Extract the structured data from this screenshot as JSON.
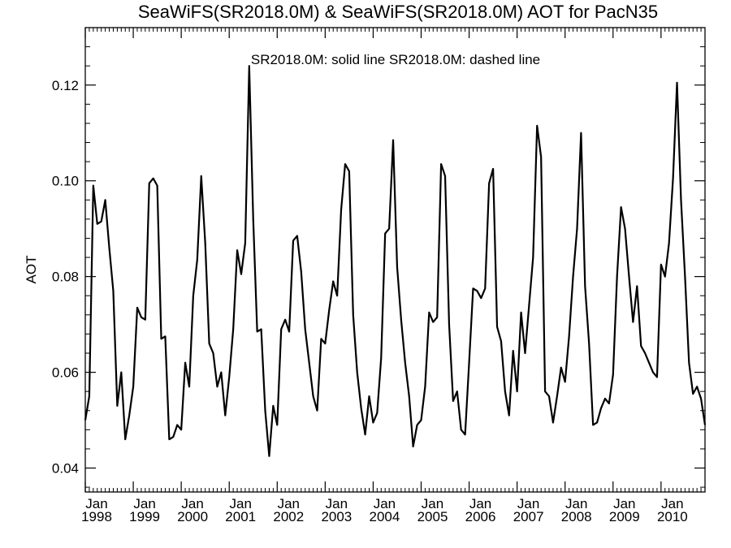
{
  "chart_data": {
    "type": "line",
    "title": "SeaWiFS(SR2018.0M) & SeaWiFS(SR2018.0M)  AOT for PacN35",
    "annotation": "SR2018.0M: solid line   SR2018.0M: dashed line",
    "xlabel": "",
    "ylabel": "AOT",
    "xlim": [
      "1998-01",
      "2010-12"
    ],
    "ylim": [
      0.035,
      0.132
    ],
    "y_ticks": [
      0.04,
      0.06,
      0.08,
      0.1,
      0.12
    ],
    "y_tick_labels": [
      "0.04",
      "0.06",
      "0.08",
      "0.10",
      "0.12"
    ],
    "x_tick_labels": [
      {
        "month": "Jan",
        "year": "1998"
      },
      {
        "month": "Jan",
        "year": "1999"
      },
      {
        "month": "Jan",
        "year": "2000"
      },
      {
        "month": "Jan",
        "year": "2001"
      },
      {
        "month": "Jan",
        "year": "2002"
      },
      {
        "month": "Jan",
        "year": "2003"
      },
      {
        "month": "Jan",
        "year": "2004"
      },
      {
        "month": "Jan",
        "year": "2005"
      },
      {
        "month": "Jan",
        "year": "2006"
      },
      {
        "month": "Jan",
        "year": "2007"
      },
      {
        "month": "Jan",
        "year": "2008"
      },
      {
        "month": "Jan",
        "year": "2009"
      },
      {
        "month": "Jan",
        "year": "2010"
      }
    ],
    "grid": false,
    "series": [
      {
        "name": "SR2018.0M",
        "style": "solid",
        "color": "#000000",
        "x": [
          "1998-01",
          "1998-02",
          "1998-03",
          "1998-04",
          "1998-05",
          "1998-06",
          "1998-07",
          "1998-08",
          "1998-09",
          "1998-10",
          "1998-11",
          "1998-12",
          "1999-01",
          "1999-02",
          "1999-03",
          "1999-04",
          "1999-05",
          "1999-06",
          "1999-07",
          "1999-08",
          "1999-09",
          "1999-10",
          "1999-11",
          "1999-12",
          "2000-01",
          "2000-02",
          "2000-03",
          "2000-04",
          "2000-05",
          "2000-06",
          "2000-07",
          "2000-08",
          "2000-09",
          "2000-10",
          "2000-11",
          "2000-12",
          "2001-01",
          "2001-02",
          "2001-03",
          "2001-04",
          "2001-05",
          "2001-06",
          "2001-07",
          "2001-08",
          "2001-09",
          "2001-10",
          "2001-11",
          "2001-12",
          "2002-01",
          "2002-02",
          "2002-03",
          "2002-04",
          "2002-05",
          "2002-06",
          "2002-07",
          "2002-08",
          "2002-09",
          "2002-10",
          "2002-11",
          "2002-12",
          "2003-01",
          "2003-02",
          "2003-03",
          "2003-04",
          "2003-05",
          "2003-06",
          "2003-07",
          "2003-08",
          "2003-09",
          "2003-10",
          "2003-11",
          "2003-12",
          "2004-01",
          "2004-02",
          "2004-03",
          "2004-04",
          "2004-05",
          "2004-06",
          "2004-07",
          "2004-08",
          "2004-09",
          "2004-10",
          "2004-11",
          "2004-12",
          "2005-01",
          "2005-02",
          "2005-03",
          "2005-04",
          "2005-05",
          "2005-06",
          "2005-07",
          "2005-08",
          "2005-09",
          "2005-10",
          "2005-11",
          "2005-12",
          "2006-01",
          "2006-02",
          "2006-03",
          "2006-04",
          "2006-05",
          "2006-06",
          "2006-07",
          "2006-08",
          "2006-09",
          "2006-10",
          "2006-11",
          "2006-12",
          "2007-01",
          "2007-02",
          "2007-03",
          "2007-04",
          "2007-05",
          "2007-06",
          "2007-07",
          "2007-08",
          "2007-09",
          "2007-10",
          "2007-11",
          "2007-12",
          "2008-01",
          "2008-02",
          "2008-03",
          "2008-04",
          "2008-05",
          "2008-06",
          "2008-07",
          "2008-08",
          "2008-09",
          "2008-10",
          "2008-11",
          "2008-12",
          "2009-01",
          "2009-02",
          "2009-03",
          "2009-04",
          "2009-05",
          "2009-06",
          "2009-07",
          "2009-08",
          "2009-09",
          "2009-10",
          "2009-11",
          "2009-12",
          "2010-01",
          "2010-02",
          "2010-03",
          "2010-04",
          "2010-05",
          "2010-06",
          "2010-07",
          "2010-08",
          "2010-09",
          "2010-10",
          "2010-11",
          "2010-12"
        ],
        "values": [
          0.05,
          0.055,
          0.099,
          0.091,
          0.0915,
          0.096,
          0.086,
          0.077,
          0.053,
          0.06,
          0.046,
          0.051,
          0.057,
          0.0735,
          0.0715,
          0.071,
          0.0995,
          0.1005,
          0.099,
          0.067,
          0.0675,
          0.046,
          0.0465,
          0.049,
          0.048,
          0.062,
          0.057,
          0.076,
          0.0835,
          0.101,
          0.087,
          0.066,
          0.064,
          0.057,
          0.06,
          0.051,
          0.059,
          0.069,
          0.0855,
          0.0805,
          0.087,
          0.124,
          0.092,
          0.0685,
          0.069,
          0.052,
          0.0425,
          0.053,
          0.049,
          0.069,
          0.071,
          0.0685,
          0.0875,
          0.0885,
          0.081,
          0.069,
          0.062,
          0.055,
          0.052,
          0.067,
          0.066,
          0.073,
          0.079,
          0.076,
          0.094,
          0.1035,
          0.102,
          0.072,
          0.06,
          0.0525,
          0.047,
          0.055,
          0.0495,
          0.0515,
          0.063,
          0.089,
          0.09,
          0.1085,
          0.082,
          0.071,
          0.062,
          0.055,
          0.0445,
          0.049,
          0.05,
          0.057,
          0.0725,
          0.0705,
          0.0715,
          0.1035,
          0.101,
          0.07,
          0.054,
          0.056,
          0.048,
          0.047,
          0.062,
          0.0775,
          0.077,
          0.0755,
          0.0775,
          0.0995,
          0.1025,
          0.0695,
          0.0665,
          0.056,
          0.051,
          0.0645,
          0.056,
          0.0725,
          0.064,
          0.074,
          0.084,
          0.1115,
          0.105,
          0.056,
          0.055,
          0.0495,
          0.055,
          0.061,
          0.058,
          0.0675,
          0.08,
          0.09,
          0.11,
          0.078,
          0.066,
          0.049,
          0.0495,
          0.0525,
          0.0545,
          0.0535,
          0.0595,
          0.08,
          0.0945,
          0.09,
          0.08,
          0.0705,
          0.078,
          0.0655,
          0.064,
          0.062,
          0.06,
          0.059,
          0.0825,
          0.08,
          0.087,
          0.1005,
          0.1205,
          0.096,
          0.08,
          0.062,
          0.0555,
          0.057,
          0.0545,
          0.049
        ]
      }
    ]
  }
}
